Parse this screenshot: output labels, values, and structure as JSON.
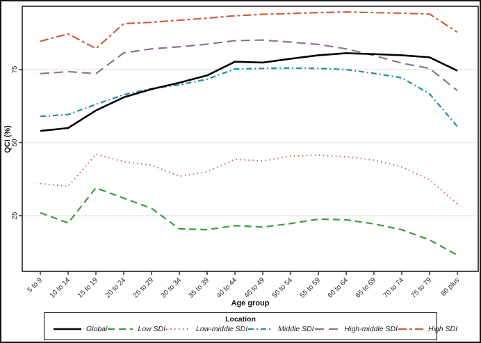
{
  "figure": {
    "y_axis_title": "QCI (%)",
    "x_axis_title": "Age group"
  },
  "legend": {
    "title": "Location"
  },
  "colors": {
    "frame": "#000000",
    "gridline": "#e4e4e4",
    "tick_text": "#2b2b2b",
    "image_border": "#141414"
  },
  "chart_data": {
    "type": "line",
    "title": "",
    "xlabel": "Age group",
    "ylabel": "QCI (%)",
    "yticks": [
      25,
      50,
      75
    ],
    "ylim": [
      6,
      96.6
    ],
    "grid": true,
    "legend_position": "bottom",
    "legend_title": "Location",
    "categories": [
      "5 to 9",
      "10 to 14",
      "15 to 19",
      "20 to 24",
      "25 to 29",
      "30 to 34",
      "35 to 39",
      "40 to 44",
      "45 to 49",
      "50 to 54",
      "55 to 59",
      "60 to 64",
      "65 to 69",
      "70 to 74",
      "75 to 79",
      "80 plus"
    ],
    "series": [
      {
        "name": "Global",
        "color": "#000000",
        "dash": "solid",
        "width": 2.6,
        "values": [
          54,
          55,
          61,
          65.5,
          68.3,
          70.5,
          73,
          77.7,
          77.4,
          78.7,
          79.9,
          80.6,
          80.3,
          79.9,
          79.2,
          74.6
        ]
      },
      {
        "name": "Low SDI",
        "color": "#379e3c",
        "dash": "dash",
        "width": 2.2,
        "values": [
          26,
          22.5,
          34.5,
          31,
          27.5,
          20.5,
          20.2,
          21.6,
          21.1,
          22.3,
          23.8,
          23.6,
          22.2,
          20.2,
          16.7,
          11.5
        ]
      },
      {
        "name": "Low-middle SDI",
        "color": "#e15d5d",
        "dash": "dot",
        "width": 2.0,
        "values": [
          36,
          35,
          46,
          43.5,
          42.3,
          38.5,
          40,
          44.3,
          43.7,
          45.4,
          45.7,
          45.2,
          44,
          41.7,
          37.3,
          29
        ]
      },
      {
        "name": "Middle SDI",
        "color": "#1e8e9f",
        "dash": "dash-dot",
        "width": 2.2,
        "values": [
          59,
          59.6,
          63.1,
          66.4,
          68.5,
          69.8,
          71.7,
          75.2,
          75.4,
          75.5,
          75.4,
          75,
          73.7,
          72.2,
          66.7,
          55.5
        ]
      },
      {
        "name": "High-middle SDI",
        "color": "#907095",
        "dash": "long-dash",
        "width": 2.2,
        "values": [
          73.6,
          74.3,
          73.6,
          80.7,
          82.1,
          82.8,
          83.7,
          84.9,
          85.1,
          84.4,
          83.6,
          82.1,
          79.8,
          77.2,
          75.4,
          67.8
        ]
      },
      {
        "name": "High SDI",
        "color": "#cd5f3f",
        "dash": "dash-dot-dot",
        "width": 2.2,
        "values": [
          84.7,
          87.2,
          82.2,
          90.7,
          91.2,
          91.9,
          92.6,
          93.4,
          93.9,
          94.2,
          94.5,
          94.7,
          94.5,
          94.3,
          94,
          87.8
        ]
      }
    ]
  }
}
